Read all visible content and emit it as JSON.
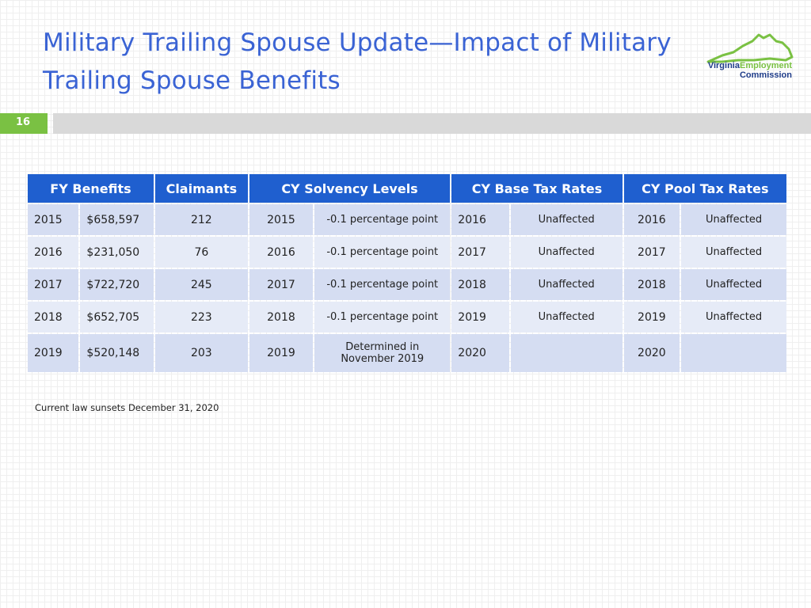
{
  "title_line1": "Military Trailing Spouse Update—Impact of Military",
  "title_line2": "Trailing Spouse Benefits",
  "logo": {
    "word1": "Virginia",
    "word2": "Employment",
    "word3": "Commission",
    "icon": "virginia-state-outline-icon",
    "color_green": "#7ac143",
    "color_navy": "#1f3d8a"
  },
  "slide_number": "16",
  "table": {
    "headers": [
      "FY Benefits",
      "Claimants",
      "CY Solvency Levels",
      "CY Base Tax Rates",
      "CY Pool Tax Rates"
    ],
    "rows": [
      [
        "2015",
        "$658,597",
        "212",
        "2015",
        "-0.1 percentage point",
        "2016",
        "Unaffected",
        "2016",
        "Unaffected"
      ],
      [
        "2016",
        "$231,050",
        "76",
        "2016",
        "-0.1 percentage point",
        "2017",
        "Unaffected",
        "2017",
        "Unaffected"
      ],
      [
        "2017",
        "$722,720",
        "245",
        "2017",
        "-0.1 percentage point",
        "2018",
        "Unaffected",
        "2018",
        "Unaffected"
      ],
      [
        "2018",
        "$652,705",
        "223",
        "2018",
        "-0.1 percentage point",
        "2019",
        "Unaffected",
        "2019",
        "Unaffected"
      ],
      [
        "2019",
        "$520,148",
        "203",
        "2019",
        "Determined in",
        "2020",
        "",
        "2020",
        ""
      ]
    ],
    "row5_solvency_line2": "November 2019",
    "header_color": "#1f5fcf",
    "row_color_1": "#d5ddf2",
    "row_color_2": "#e6ebf7"
  },
  "footnote": "Current law sunsets December 31, 2020"
}
